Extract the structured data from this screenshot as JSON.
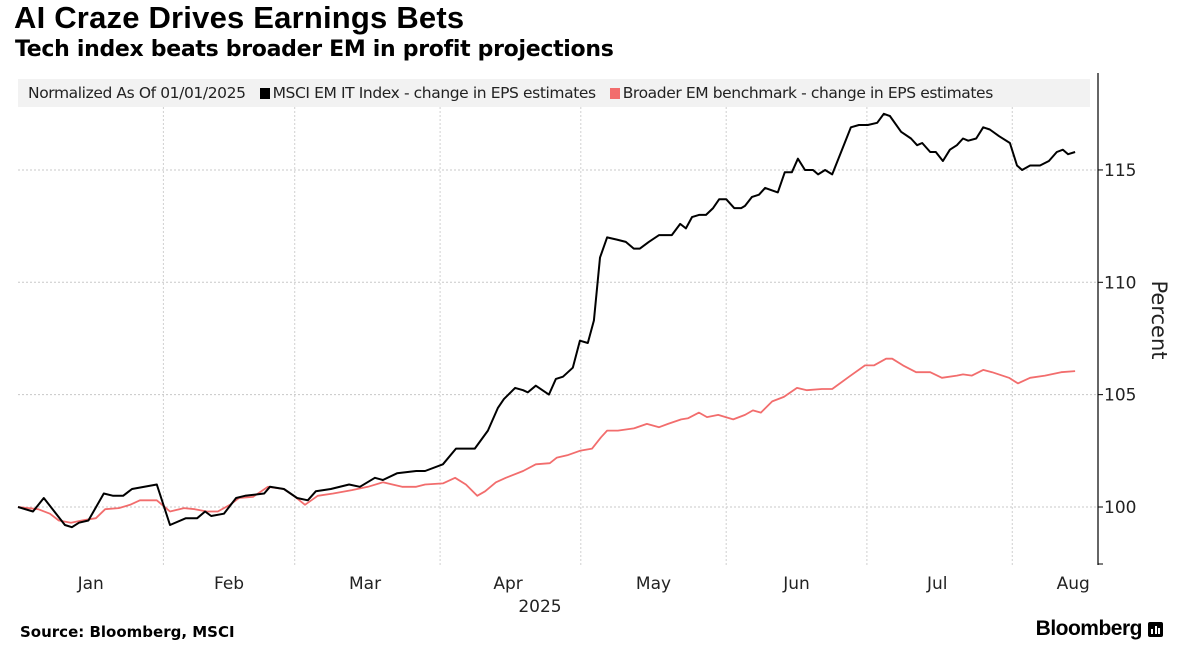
{
  "header": {
    "title": "AI Craze Drives Earnings Bets",
    "subtitle": "Tech index beats broader EM in profit projections"
  },
  "legend": {
    "note": "Normalized As Of 01/01/2025",
    "items": [
      {
        "label": "MSCI EM IT Index - change in EPS estimates",
        "color": "#000000"
      },
      {
        "label": "Broader EM benchmark - change in EPS estimates",
        "color": "#f26d6d"
      }
    ]
  },
  "footer": {
    "source": "Source: Bloomberg, MSCI",
    "brand": "Bloomberg"
  },
  "chart_data": {
    "type": "line",
    "title": "AI Craze Drives Earnings Bets",
    "subtitle": "Tech index beats broader EM in profit projections",
    "xlabel": "2025",
    "ylabel": "Percent",
    "x_units": "days since 2025-01-01",
    "xlim": [
      0,
      230
    ],
    "ylim": [
      97.4,
      119.3
    ],
    "y_ticks": [
      100,
      105,
      110,
      115
    ],
    "x_ticks": [
      {
        "label": "Jan",
        "day": 15.5
      },
      {
        "label": "Feb",
        "day": 45
      },
      {
        "label": "Mar",
        "day": 74
      },
      {
        "label": "Apr",
        "day": 104.5
      },
      {
        "label": "May",
        "day": 135.5
      },
      {
        "label": "Jun",
        "day": 166
      },
      {
        "label": "Jul",
        "day": 196
      },
      {
        "label": "Aug",
        "day": 225
      }
    ],
    "x_gridlines": [
      31,
      59,
      90,
      120,
      151,
      181,
      212
    ],
    "grid": true,
    "legend_position": "top",
    "series": [
      {
        "name": "MSCI EM IT Index - change in EPS estimates",
        "color": "#000000",
        "x": [
          0,
          3.2,
          5.5,
          10,
          11.5,
          13,
          15,
          18.3,
          20.3,
          22.4,
          24.3,
          29.6,
          32.4,
          35.8,
          38.2,
          39.9,
          41.2,
          43.9,
          46.5,
          48.4,
          52.5,
          53.7,
          56.7,
          59.5,
          61.8,
          63.5,
          66.7,
          70.6,
          72.9,
          76.1,
          77.8,
          80.8,
          84.9,
          86.8,
          90.6,
          93.4,
          97.4,
          100.2,
          102.3,
          103.6,
          106,
          107.7,
          108.7,
          110.4,
          113.2,
          114.7,
          116.2,
          118.3,
          119.8,
          121.5,
          122.8,
          124.1,
          125.6,
          127.7,
          129.6,
          131.3,
          132.6,
          134.5,
          136.7,
          139.4,
          141.2,
          142.4,
          143.7,
          145.2,
          146.7,
          148.2,
          149.5,
          151,
          152.7,
          154.2,
          155,
          156.5,
          158,
          159.3,
          162,
          163.5,
          165,
          166.3,
          167.8,
          169.5,
          170.6,
          172.1,
          173.6,
          175.7,
          177.6,
          179.3,
          181.2,
          183.2,
          184.6,
          185.9,
          188.3,
          190.4,
          191.7,
          192.8,
          194.5,
          195.7,
          197.2,
          198.7,
          200.2,
          201.5,
          202.6,
          204.3,
          205.8,
          207.2,
          209.2,
          211.5,
          213,
          214.1,
          215.8,
          217.9,
          219.8,
          221.5,
          222.8,
          223.9,
          225.4
        ],
        "values": [
          100.0,
          99.8,
          100.4,
          99.2,
          99.1,
          99.3,
          99.4,
          100.6,
          100.5,
          100.5,
          100.8,
          101.0,
          99.2,
          99.5,
          99.5,
          99.8,
          99.6,
          99.7,
          100.4,
          100.5,
          100.6,
          100.9,
          100.8,
          100.4,
          100.3,
          100.7,
          100.8,
          101.0,
          100.9,
          101.3,
          101.2,
          101.5,
          101.6,
          101.6,
          101.9,
          102.6,
          102.6,
          103.4,
          104.4,
          104.8,
          105.3,
          105.2,
          105.1,
          105.4,
          105.0,
          105.7,
          105.8,
          106.2,
          107.4,
          107.3,
          108.3,
          111.1,
          112.0,
          111.9,
          111.8,
          111.5,
          111.5,
          111.8,
          112.1,
          112.1,
          112.6,
          112.4,
          112.9,
          113.0,
          113.0,
          113.3,
          113.7,
          113.7,
          113.3,
          113.3,
          113.4,
          113.8,
          113.9,
          114.2,
          114.0,
          114.9,
          114.9,
          115.5,
          115.0,
          115.0,
          114.8,
          115.0,
          114.8,
          115.9,
          116.9,
          117.0,
          117.0,
          117.1,
          117.5,
          117.4,
          116.7,
          116.4,
          116.1,
          116.2,
          115.8,
          115.8,
          115.4,
          115.9,
          116.1,
          116.4,
          116.3,
          116.4,
          116.9,
          116.8,
          116.5,
          116.2,
          115.2,
          115.0,
          115.2,
          115.2,
          115.4,
          115.8,
          115.9,
          115.7,
          115.8
        ]
      },
      {
        "name": "Broader EM benchmark - change in EPS estimates",
        "color": "#f26d6d",
        "x": [
          0,
          4.3,
          6.8,
          8.7,
          11.3,
          13.6,
          16.6,
          18.6,
          21.5,
          23.9,
          26,
          29.6,
          32.4,
          35.4,
          37.7,
          40.3,
          42.6,
          45.2,
          47.1,
          50.1,
          53.3,
          56.7,
          59.1,
          61.2,
          63.9,
          67.2,
          71.2,
          74.6,
          77.8,
          81.9,
          84.9,
          86.8,
          90.6,
          93.2,
          95.5,
          97.9,
          99.6,
          101.9,
          104,
          107.7,
          110.4,
          113.4,
          114.9,
          117.1,
          119.8,
          122.4,
          124.3,
          125.6,
          127.9,
          131.3,
          134.1,
          136.7,
          138.6,
          141.4,
          142.9,
          145.2,
          146.9,
          149.3,
          152.5,
          155,
          156.7,
          158.4,
          160.8,
          163.3,
          166.1,
          168.2,
          171.4,
          173.6,
          177.2,
          180.6,
          182.5,
          185.1,
          186.4,
          188.7,
          191.5,
          194.5,
          197,
          200.2,
          201.5,
          203.4,
          205.8,
          207.7,
          211.3,
          213.2,
          215.8,
          219,
          222.4,
          225.4
        ],
        "values": [
          100.0,
          99.9,
          99.7,
          99.4,
          99.3,
          99.4,
          99.5,
          99.9,
          99.95,
          100.1,
          100.3,
          100.3,
          99.8,
          99.95,
          99.9,
          99.8,
          99.8,
          100.1,
          100.4,
          100.45,
          100.9,
          100.8,
          100.45,
          100.1,
          100.5,
          100.6,
          100.75,
          100.9,
          101.1,
          100.9,
          100.9,
          101.0,
          101.05,
          101.3,
          101.0,
          100.5,
          100.7,
          101.1,
          101.3,
          101.6,
          101.9,
          101.95,
          102.2,
          102.3,
          102.5,
          102.6,
          103.1,
          103.4,
          103.4,
          103.5,
          103.7,
          103.55,
          103.7,
          103.9,
          103.95,
          104.2,
          104.0,
          104.1,
          103.9,
          104.1,
          104.3,
          104.2,
          104.7,
          104.9,
          105.3,
          105.2,
          105.25,
          105.25,
          105.8,
          106.3,
          106.3,
          106.6,
          106.6,
          106.3,
          106.0,
          106.0,
          105.75,
          105.85,
          105.9,
          105.85,
          106.1,
          106.0,
          105.75,
          105.5,
          105.75,
          105.85,
          106.0,
          106.05
        ]
      }
    ]
  }
}
